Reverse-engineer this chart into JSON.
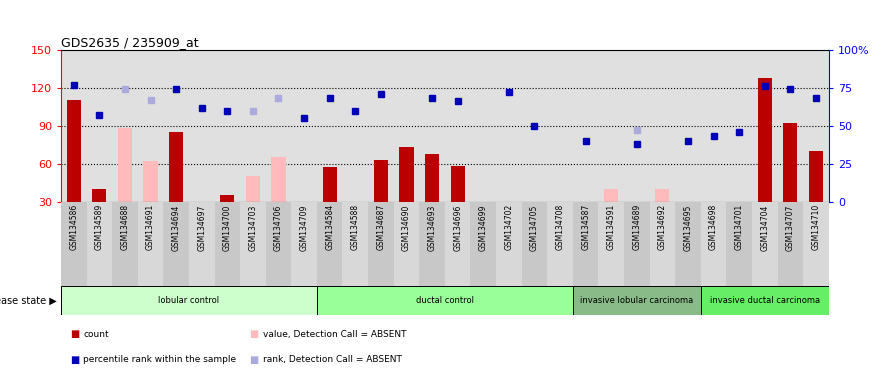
{
  "title": "GDS2635 / 235909_at",
  "samples": [
    "GSM134586",
    "GSM134589",
    "GSM134688",
    "GSM134691",
    "GSM134694",
    "GSM134697",
    "GSM134700",
    "GSM134703",
    "GSM134706",
    "GSM134709",
    "GSM134584",
    "GSM134588",
    "GSM134687",
    "GSM134690",
    "GSM134693",
    "GSM134696",
    "GSM134699",
    "GSM134702",
    "GSM134705",
    "GSM134708",
    "GSM134587",
    "GSM134591",
    "GSM134689",
    "GSM134692",
    "GSM134695",
    "GSM134698",
    "GSM134701",
    "GSM134704",
    "GSM134707",
    "GSM134710"
  ],
  "count_present": [
    110,
    40,
    null,
    null,
    85,
    null,
    35,
    null,
    null,
    null,
    57,
    null,
    63,
    73,
    68,
    58,
    null,
    null,
    null,
    null,
    null,
    null,
    null,
    null,
    null,
    null,
    null,
    128,
    92,
    70
  ],
  "count_absent": [
    null,
    null,
    88,
    62,
    null,
    null,
    null,
    50,
    65,
    null,
    null,
    null,
    null,
    null,
    null,
    null,
    null,
    null,
    null,
    null,
    null,
    40,
    null,
    40,
    null,
    null,
    null,
    null,
    null,
    null
  ],
  "rank_present": [
    77,
    57,
    null,
    null,
    74,
    62,
    60,
    null,
    null,
    55,
    68,
    60,
    71,
    null,
    68,
    66,
    null,
    72,
    50,
    null,
    40,
    null,
    38,
    null,
    40,
    43,
    46,
    76,
    74,
    68
  ],
  "rank_absent": [
    null,
    null,
    74,
    67,
    null,
    null,
    null,
    60,
    68,
    null,
    null,
    null,
    null,
    null,
    null,
    null,
    null,
    null,
    null,
    null,
    null,
    null,
    47,
    null,
    null,
    null,
    null,
    null,
    null,
    null
  ],
  "groups": [
    {
      "label": "lobular control",
      "start": 0,
      "end": 10,
      "color": "#ccffcc"
    },
    {
      "label": "ductal control",
      "start": 10,
      "end": 20,
      "color": "#99ff99"
    },
    {
      "label": "invasive lobular carcinoma",
      "start": 20,
      "end": 25,
      "color": "#88cc88"
    },
    {
      "label": "invasive ductal carcinoma",
      "start": 25,
      "end": 30,
      "color": "#66ee66"
    }
  ],
  "ylim_left": [
    30,
    150
  ],
  "ylim_right": [
    0,
    100
  ],
  "yticks_left": [
    30,
    60,
    90,
    120,
    150
  ],
  "yticks_right": [
    0,
    25,
    50,
    75,
    100
  ],
  "ytick_labels_right": [
    "0",
    "25",
    "50",
    "75",
    "100%"
  ],
  "hlines": [
    60,
    90,
    120
  ],
  "bar_color_present": "#bb0000",
  "bar_color_absent": "#ffbbbb",
  "dot_color_present": "#0000bb",
  "dot_color_absent": "#aaaadd",
  "plot_bg": "#e0e0e0",
  "xtick_bg": "#d0d0d0",
  "disease_state_label": "disease state"
}
